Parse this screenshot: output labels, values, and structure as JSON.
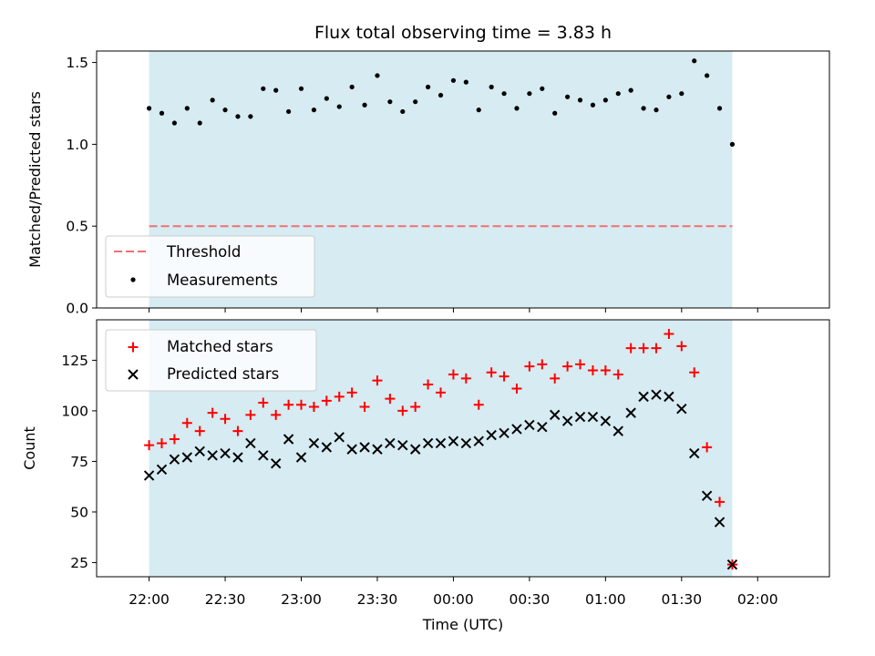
{
  "chart_data": [
    {
      "type": "scatter",
      "title": "Flux total observing time = 3.83 h",
      "ylabel": "Matched/Predicted stars",
      "xlabel": "",
      "ylim": [
        0,
        1.57
      ],
      "yticks": [
        0.0,
        0.5,
        1.0,
        1.5
      ],
      "ytick_labels": [
        "0.0",
        "0.5",
        "1.0",
        "1.5"
      ],
      "threshold": 0.5,
      "x_times": [
        "22:00",
        "22:05",
        "22:10",
        "22:15",
        "22:20",
        "22:25",
        "22:30",
        "22:35",
        "22:40",
        "22:45",
        "22:50",
        "22:55",
        "23:00",
        "23:05",
        "23:10",
        "23:15",
        "23:20",
        "23:25",
        "23:30",
        "23:35",
        "23:40",
        "23:45",
        "23:50",
        "23:55",
        "00:00",
        "00:05",
        "00:10",
        "00:15",
        "00:20",
        "00:25",
        "00:30",
        "00:35",
        "00:40",
        "00:45",
        "00:50",
        "00:55",
        "01:00",
        "01:05",
        "01:10",
        "01:15",
        "01:20",
        "01:25",
        "01:30",
        "01:35",
        "01:40",
        "01:45",
        "01:50"
      ],
      "series": [
        {
          "name": "Measurements",
          "color": "#000000",
          "values": [
            1.22,
            1.19,
            1.13,
            1.22,
            1.13,
            1.27,
            1.21,
            1.17,
            1.17,
            1.34,
            1.33,
            1.2,
            1.34,
            1.21,
            1.28,
            1.23,
            1.35,
            1.24,
            1.42,
            1.26,
            1.2,
            1.26,
            1.35,
            1.3,
            1.39,
            1.38,
            1.21,
            1.35,
            1.31,
            1.22,
            1.31,
            1.34,
            1.19,
            1.29,
            1.27,
            1.24,
            1.27,
            1.31,
            1.33,
            1.22,
            1.21,
            1.29,
            1.31,
            1.51,
            1.42,
            1.22,
            1.0
          ]
        },
        {
          "name": "Threshold",
          "color": "#f07070"
        }
      ],
      "legend_placement": "lower-left"
    },
    {
      "type": "scatter",
      "title": "",
      "ylabel": "Count",
      "xlabel": "Time (UTC)",
      "ylim": [
        18,
        145
      ],
      "yticks": [
        25,
        50,
        75,
        100,
        125
      ],
      "ytick_labels": [
        "25",
        "50",
        "75",
        "100",
        "125"
      ],
      "xticks": [
        "22:00",
        "22:30",
        "23:00",
        "23:30",
        "00:00",
        "00:30",
        "01:00",
        "01:30",
        "02:00"
      ],
      "series": [
        {
          "name": "Matched stars",
          "color": "#ff0000",
          "values": [
            83,
            84,
            86,
            94,
            90,
            99,
            96,
            90,
            98,
            104,
            98,
            103,
            103,
            102,
            105,
            107,
            109,
            102,
            115,
            106,
            100,
            102,
            113,
            109,
            118,
            116,
            103,
            119,
            117,
            111,
            122,
            123,
            116,
            122,
            123,
            120,
            120,
            118,
            131,
            131,
            131,
            138,
            132,
            119,
            82,
            55,
            24
          ]
        },
        {
          "name": "Predicted stars",
          "color": "#000000",
          "values": [
            68,
            71,
            76,
            77,
            80,
            78,
            79,
            77,
            84,
            78,
            74,
            86,
            77,
            84,
            82,
            87,
            81,
            82,
            81,
            84,
            83,
            81,
            84,
            84,
            85,
            84,
            85,
            88,
            89,
            91,
            93,
            92,
            98,
            95,
            97,
            97,
            95,
            90,
            99,
            107,
            108,
            107,
            101,
            79,
            58,
            45,
            24
          ]
        }
      ],
      "legend_placement": "upper-left"
    }
  ],
  "shaded_span": {
    "start": "22:00",
    "end": "01:50",
    "color": "#add8e6"
  }
}
